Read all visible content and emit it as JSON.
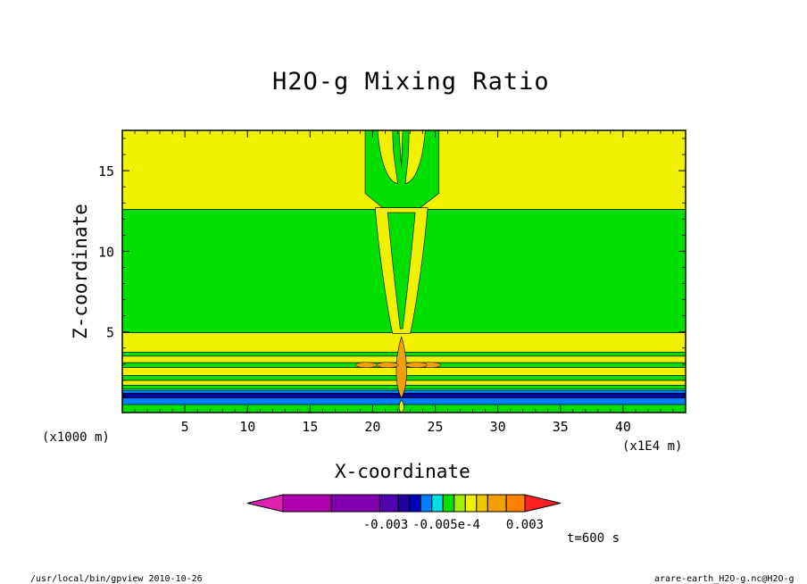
{
  "chart_data": {
    "type": "contour",
    "title": "H2O-g Mixing Ratio",
    "xlabel": "X-coordinate",
    "ylabel": "Z-coordinate",
    "x_unit": "(x1000 m)",
    "y_unit": "(x1E4 m)",
    "x_ticks": [
      "5",
      "10",
      "15",
      "20",
      "25",
      "30",
      "35",
      "40"
    ],
    "y_ticks": [
      "5",
      "10",
      "15"
    ],
    "xlim": [
      0,
      45
    ],
    "ylim": [
      0,
      17.5
    ],
    "colorbar": {
      "labels": [
        "-0.003",
        "-0.005e-4",
        "0.003"
      ],
      "colors": [
        "#e020b0",
        "#b000b0",
        "#8000b0",
        "#5000b0",
        "#2000a0",
        "#0000c0",
        "#0080ff",
        "#00e0e0",
        "#00e000",
        "#a0f000",
        "#f0f000",
        "#f0c800",
        "#f0a000",
        "#ff8000",
        "#ff2020"
      ]
    },
    "colors": {
      "band_yellow": "#f0f000",
      "band_green": "#00e000",
      "core_orange": "#f0a000",
      "deep_blue": "#0000a0",
      "light_blue": "#0080ff"
    },
    "time_label": "t=600 s"
  },
  "footer": {
    "left": "/usr/local/bin/gpview  2010-10-26",
    "right": "arare-earth_H2O-g.nc@H2O-g"
  }
}
